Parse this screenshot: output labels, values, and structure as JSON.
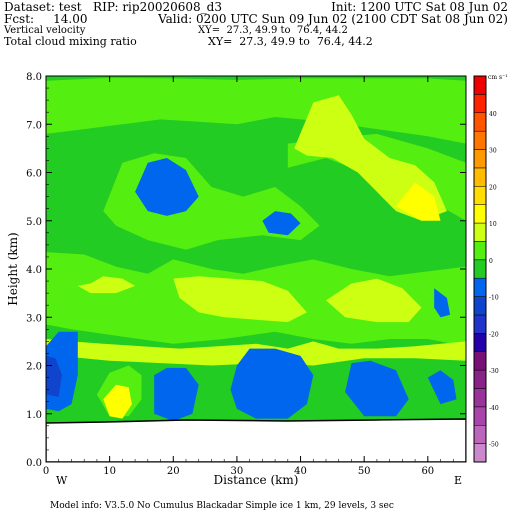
{
  "header": {
    "dataset": "Dataset: test   RIP: rip20020608_d3",
    "init": "Init: 1200 UTC Sat 08 Jun 02",
    "fcst": "Fcst:     14.00",
    "valid": "Valid: 0200 UTC Sun 09 Jun 02 (2100 CDT Sat 08 Jun 02)",
    "field1": "Vertical velocity",
    "field1_xy": "XY=  27.3, 49.9 to  76.4, 44.2",
    "field2": "Total cloud mixing ratio",
    "field2_xy": "XY=  27.3, 49.9 to  76.4, 44.2"
  },
  "footer": {
    "model_info": "Model info: V3.5.0 No Cumulus Blackadar  Simple ice    1 km,  29 levels,     3 sec"
  },
  "chart_data": {
    "type": "heatmap",
    "xlabel": "Distance (km)",
    "ylabel": "Height (km)",
    "xlim": [
      0,
      66
    ],
    "ylim": [
      0,
      8
    ],
    "x_ticks": [
      0,
      10,
      20,
      30,
      40,
      50,
      60
    ],
    "y_ticks": [
      "0.0",
      "1.0",
      "2.0",
      "3.0",
      "4.0",
      "5.0",
      "6.0",
      "7.0",
      "8.0"
    ],
    "x_end_labels": {
      "left": "W",
      "right": "E"
    },
    "terrain_height_km": 0.85,
    "colorbar": {
      "unit": "cm s⁻¹",
      "levels": [
        -55,
        -50,
        -45,
        -40,
        -35,
        -30,
        -25,
        -20,
        -15,
        -10,
        -5,
        0,
        5,
        10,
        15,
        20,
        25,
        30,
        35,
        40,
        45,
        50
      ],
      "tick_labels": [
        {
          "value": -50,
          "label": "-50"
        },
        {
          "value": -40,
          "label": "-40"
        },
        {
          "value": -30,
          "label": "-30"
        },
        {
          "value": -20,
          "label": "-20"
        },
        {
          "value": -10,
          "label": "-10"
        },
        {
          "value": 0,
          "label": "0"
        },
        {
          "value": 10,
          "label": "10"
        },
        {
          "value": 20,
          "label": "20"
        },
        {
          "value": 30,
          "label": "30"
        },
        {
          "value": 40,
          "label": "40"
        }
      ],
      "colors": [
        "#cc88cc",
        "#bb66bb",
        "#aa44aa",
        "#993399",
        "#882288",
        "#771177",
        "#2200aa",
        "#2233cc",
        "#1144cc",
        "#0066ee",
        "#22cc22",
        "#55ee11",
        "#ccff11",
        "#ffff00",
        "#ffdd00",
        "#ffbb00",
        "#ff9900",
        "#ff7700",
        "#ff5500",
        "#ff2200",
        "#ee0000",
        "#dd0000"
      ]
    },
    "field_colors": {
      "background": "#22cc22",
      "weak_up": "#55ee11",
      "up": "#ccff11",
      "strong_up": "#ffff00",
      "peak_up": "#ffdd00",
      "down": "#0066ee",
      "strong_down": "#1144cc"
    },
    "regions": [
      {
        "level": "weak_up",
        "polygon": [
          [
            0,
            6.8
          ],
          [
            6,
            6.9
          ],
          [
            12,
            7.0
          ],
          [
            18,
            7.1
          ],
          [
            24,
            7.05
          ],
          [
            30,
            7.0
          ],
          [
            36,
            7.15
          ],
          [
            44,
            7.05
          ],
          [
            52,
            6.9
          ],
          [
            60,
            6.75
          ],
          [
            66,
            6.6
          ],
          [
            66,
            7.9
          ],
          [
            60,
            7.95
          ],
          [
            50,
            7.95
          ],
          [
            40,
            7.95
          ],
          [
            30,
            7.92
          ],
          [
            20,
            7.95
          ],
          [
            10,
            7.96
          ],
          [
            0,
            7.9
          ]
        ]
      },
      {
        "level": "weak_up",
        "polygon": [
          [
            38,
            6.1
          ],
          [
            44,
            6.3
          ],
          [
            50,
            6.0
          ],
          [
            56,
            5.7
          ],
          [
            62,
            5.3
          ],
          [
            66,
            5.0
          ],
          [
            66,
            6.2
          ],
          [
            60,
            6.5
          ],
          [
            52,
            6.8
          ],
          [
            44,
            6.7
          ],
          [
            38,
            6.6
          ]
        ]
      },
      {
        "level": "up",
        "polygon": [
          [
            39,
            6.5
          ],
          [
            42,
            7.45
          ],
          [
            46,
            7.6
          ],
          [
            48,
            7.2
          ],
          [
            50,
            6.7
          ],
          [
            54,
            6.3
          ],
          [
            58,
            6.15
          ],
          [
            61,
            5.8
          ],
          [
            63,
            5.2
          ],
          [
            59,
            5.0
          ],
          [
            55,
            5.2
          ],
          [
            52,
            5.6
          ],
          [
            49,
            6.0
          ],
          [
            45,
            6.3
          ],
          [
            41,
            6.35
          ]
        ]
      },
      {
        "level": "strong_up",
        "polygon": [
          [
            55,
            5.3
          ],
          [
            58,
            5.8
          ],
          [
            61,
            5.5
          ],
          [
            62,
            5.0
          ],
          [
            59,
            5.0
          ]
        ]
      },
      {
        "level": "weak_up",
        "polygon": [
          [
            9,
            5.2
          ],
          [
            12,
            6.2
          ],
          [
            17,
            6.4
          ],
          [
            22,
            6.3
          ],
          [
            26,
            5.7
          ],
          [
            31,
            5.5
          ],
          [
            36,
            5.7
          ],
          [
            40,
            5.3
          ],
          [
            43,
            4.9
          ],
          [
            40,
            4.6
          ],
          [
            34,
            4.7
          ],
          [
            27,
            4.6
          ],
          [
            22,
            4.4
          ],
          [
            16,
            4.6
          ],
          [
            11,
            4.9
          ]
        ]
      },
      {
        "level": "down",
        "polygon": [
          [
            14,
            5.6
          ],
          [
            16,
            6.2
          ],
          [
            19,
            6.3
          ],
          [
            22,
            6.05
          ],
          [
            24,
            5.5
          ],
          [
            22,
            5.2
          ],
          [
            19,
            5.1
          ],
          [
            16,
            5.2
          ]
        ]
      },
      {
        "level": "down",
        "polygon": [
          [
            34,
            5.0
          ],
          [
            36,
            5.2
          ],
          [
            38.5,
            5.15
          ],
          [
            40,
            4.95
          ],
          [
            38,
            4.7
          ],
          [
            35,
            4.75
          ]
        ]
      },
      {
        "level": "weak_up",
        "polygon": [
          [
            0,
            4.35
          ],
          [
            6,
            4.3
          ],
          [
            11,
            4.05
          ],
          [
            16,
            3.9
          ],
          [
            20,
            4.2
          ],
          [
            26,
            4.0
          ],
          [
            31,
            3.9
          ],
          [
            36,
            4.05
          ],
          [
            42,
            4.2
          ],
          [
            48,
            4.0
          ],
          [
            54,
            3.85
          ],
          [
            60,
            3.95
          ],
          [
            66,
            4.05
          ],
          [
            66,
            2.4
          ],
          [
            60,
            2.55
          ],
          [
            54,
            2.55
          ],
          [
            48,
            2.45
          ],
          [
            42,
            2.55
          ],
          [
            36,
            2.7
          ],
          [
            28,
            2.55
          ],
          [
            20,
            2.45
          ],
          [
            12,
            2.6
          ],
          [
            4,
            2.75
          ],
          [
            0,
            2.85
          ]
        ]
      },
      {
        "level": "up",
        "polygon": [
          [
            5,
            3.65
          ],
          [
            7,
            3.7
          ],
          [
            9,
            3.85
          ],
          [
            12,
            3.8
          ],
          [
            14,
            3.65
          ],
          [
            11,
            3.5
          ],
          [
            7,
            3.5
          ]
        ]
      },
      {
        "level": "up",
        "polygon": [
          [
            20,
            3.8
          ],
          [
            24,
            3.85
          ],
          [
            29,
            3.8
          ],
          [
            34,
            3.75
          ],
          [
            38,
            3.55
          ],
          [
            41,
            3.1
          ],
          [
            38,
            2.9
          ],
          [
            33,
            2.95
          ],
          [
            28,
            3.0
          ],
          [
            24,
            3.1
          ],
          [
            21,
            3.4
          ]
        ]
      },
      {
        "level": "up",
        "polygon": [
          [
            44,
            3.35
          ],
          [
            48,
            3.7
          ],
          [
            52,
            3.8
          ],
          [
            56,
            3.6
          ],
          [
            59,
            3.2
          ],
          [
            57,
            2.9
          ],
          [
            52,
            2.9
          ],
          [
            47,
            3.0
          ]
        ]
      },
      {
        "level": "down",
        "polygon": [
          [
            61,
            3.6
          ],
          [
            63,
            3.4
          ],
          [
            63.5,
            3.05
          ],
          [
            62,
            3.0
          ],
          [
            61,
            3.2
          ]
        ]
      },
      {
        "level": "up",
        "polygon": [
          [
            0,
            2.55
          ],
          [
            4,
            2.5
          ],
          [
            9,
            2.45
          ],
          [
            15,
            2.4
          ],
          [
            21,
            2.35
          ],
          [
            27,
            2.4
          ],
          [
            33,
            2.45
          ],
          [
            38,
            2.35
          ],
          [
            42,
            2.5
          ],
          [
            46,
            2.35
          ],
          [
            52,
            2.35
          ],
          [
            58,
            2.4
          ],
          [
            66,
            2.5
          ],
          [
            66,
            2.1
          ],
          [
            58,
            2.15
          ],
          [
            50,
            2.15
          ],
          [
            42,
            2.0
          ],
          [
            34,
            2.05
          ],
          [
            26,
            2.0
          ],
          [
            18,
            2.05
          ],
          [
            10,
            2.1
          ],
          [
            2,
            2.2
          ],
          [
            0,
            2.3
          ]
        ]
      },
      {
        "level": "weak_up",
        "polygon": [
          [
            8,
            1.4
          ],
          [
            10,
            1.85
          ],
          [
            13,
            2.0
          ],
          [
            15,
            1.8
          ],
          [
            15,
            1.3
          ],
          [
            13,
            0.95
          ],
          [
            10,
            0.95
          ]
        ]
      },
      {
        "level": "strong_up",
        "polygon": [
          [
            9,
            1.3
          ],
          [
            11,
            1.6
          ],
          [
            13,
            1.55
          ],
          [
            13.5,
            1.2
          ],
          [
            12,
            0.9
          ],
          [
            10,
            0.95
          ]
        ]
      },
      {
        "level": "down",
        "polygon": [
          [
            0,
            2.4
          ],
          [
            2,
            2.7
          ],
          [
            5,
            2.7
          ],
          [
            5,
            1.8
          ],
          [
            4,
            1.2
          ],
          [
            2,
            1.05
          ],
          [
            0,
            1.1
          ]
        ]
      },
      {
        "level": "strong_down",
        "polygon": [
          [
            0,
            2.2
          ],
          [
            1.5,
            2.15
          ],
          [
            2.5,
            1.8
          ],
          [
            2,
            1.35
          ],
          [
            0,
            1.4
          ]
        ]
      },
      {
        "level": "down",
        "polygon": [
          [
            17,
            1.8
          ],
          [
            19,
            1.95
          ],
          [
            22,
            1.95
          ],
          [
            24,
            1.6
          ],
          [
            23,
            1.0
          ],
          [
            20,
            0.85
          ],
          [
            17,
            1.0
          ]
        ]
      },
      {
        "level": "down",
        "polygon": [
          [
            29,
            1.5
          ],
          [
            30,
            2.0
          ],
          [
            32,
            2.35
          ],
          [
            36,
            2.35
          ],
          [
            40,
            2.2
          ],
          [
            42,
            1.8
          ],
          [
            41,
            1.2
          ],
          [
            38,
            0.9
          ],
          [
            33,
            0.9
          ],
          [
            30,
            1.1
          ]
        ]
      },
      {
        "level": "down",
        "polygon": [
          [
            47,
            1.45
          ],
          [
            48,
            2.05
          ],
          [
            51,
            2.1
          ],
          [
            55,
            1.9
          ],
          [
            57,
            1.3
          ],
          [
            55,
            0.95
          ],
          [
            50,
            0.95
          ]
        ]
      },
      {
        "level": "down",
        "polygon": [
          [
            60,
            1.75
          ],
          [
            62,
            1.9
          ],
          [
            64,
            1.7
          ],
          [
            64.5,
            1.3
          ],
          [
            62,
            1.2
          ]
        ]
      }
    ]
  }
}
